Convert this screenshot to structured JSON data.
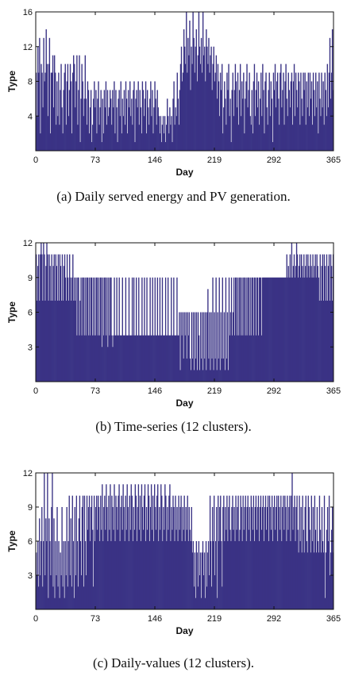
{
  "chart_data": [
    {
      "type": "bar",
      "caption": "(a) Daily served energy and PV generation.",
      "xlabel": "Day",
      "ylabel": "Type",
      "xlim": [
        0,
        365
      ],
      "ylim": [
        0,
        16
      ],
      "xticks": [
        0,
        73,
        146,
        219,
        292,
        365
      ],
      "yticks": [
        4,
        8,
        12,
        16
      ],
      "grid": false,
      "color": "#3a3385",
      "x": "days 1-365",
      "series": [
        {
          "values": [
            9,
            4,
            12,
            9,
            13,
            2,
            10,
            9,
            5,
            13,
            8,
            9,
            14,
            10,
            4,
            10,
            13,
            2,
            9,
            9,
            11,
            5,
            11,
            9,
            3,
            8,
            4,
            9,
            3,
            7,
            10,
            5,
            2,
            7,
            9,
            10,
            3,
            8,
            10,
            4,
            7,
            10,
            8,
            2,
            9,
            11,
            10,
            5,
            8,
            11,
            3,
            7,
            11,
            1,
            6,
            10,
            8,
            4,
            6,
            11,
            6,
            3,
            8,
            7,
            2,
            5,
            7,
            1,
            3,
            6,
            8,
            5,
            7,
            2,
            6,
            8,
            3,
            5,
            7,
            1,
            6,
            2,
            7,
            5,
            8,
            3,
            7,
            4,
            5,
            7,
            6,
            3,
            7,
            5,
            8,
            2,
            7,
            5,
            1,
            6,
            7,
            4,
            8,
            2,
            6,
            4,
            7,
            3,
            8,
            6,
            2,
            7,
            5,
            8,
            4,
            6,
            3,
            7,
            8,
            1,
            6,
            7,
            5,
            8,
            3,
            7,
            5,
            2,
            8,
            7,
            4,
            6,
            8,
            2,
            7,
            5,
            3,
            6,
            8,
            4,
            7,
            2,
            5,
            8,
            6,
            3,
            7,
            5,
            4,
            2,
            4,
            1,
            3,
            4,
            2,
            4,
            1,
            3,
            6,
            4,
            2,
            5,
            3,
            4,
            1,
            6,
            8,
            3,
            5,
            4,
            9,
            6,
            3,
            7,
            10,
            12,
            8,
            9,
            14,
            12,
            10,
            16,
            9,
            13,
            11,
            15,
            7,
            12,
            10,
            16,
            13,
            9,
            12,
            14,
            8,
            11,
            16,
            12,
            10,
            13,
            9,
            16,
            11,
            12,
            8,
            14,
            12,
            10,
            13,
            9,
            11,
            12,
            7,
            10,
            12,
            8,
            9,
            11,
            6,
            10,
            8,
            4,
            9,
            7,
            10,
            2,
            5,
            8,
            6,
            3,
            9,
            7,
            10,
            4,
            6,
            1,
            7,
            9,
            4,
            7,
            10,
            8,
            5,
            9,
            3,
            7,
            10,
            4,
            8,
            6,
            9,
            2,
            6,
            8,
            10,
            5,
            7,
            9,
            4,
            3,
            7,
            2,
            8,
            10,
            4,
            7,
            9,
            5,
            8,
            3,
            6,
            9,
            4,
            10,
            7,
            2,
            8,
            9,
            5,
            3,
            7,
            9,
            4,
            8,
            6,
            1,
            9,
            7,
            10,
            5,
            8,
            9,
            6,
            3,
            9,
            10,
            5,
            7,
            9,
            3,
            8,
            10,
            6,
            4,
            9,
            7,
            5,
            8,
            9,
            3,
            8,
            10,
            4,
            9,
            7,
            5,
            9,
            8,
            3,
            9,
            6,
            4,
            9,
            7,
            9,
            3,
            8,
            5,
            9,
            4,
            9,
            6,
            8,
            3,
            9,
            7,
            4,
            9,
            5,
            8,
            2,
            9,
            6,
            4,
            9,
            5,
            8,
            3,
            9,
            7,
            4,
            10,
            5,
            9,
            13,
            6,
            9,
            14,
            7
          ]
        }
      ]
    },
    {
      "type": "bar",
      "caption": "(b) Time-series (12 clusters).",
      "xlabel": "Day",
      "ylabel": "Type",
      "xlim": [
        0,
        365
      ],
      "ylim": [
        0,
        12
      ],
      "xticks": [
        0,
        73,
        146,
        219,
        292,
        365
      ],
      "yticks": [
        3,
        6,
        9,
        12
      ],
      "grid": false,
      "color": "#3a3385",
      "x": "days 1-365",
      "series": [
        {
          "values": [
            11,
            7,
            10,
            11,
            7,
            11,
            12,
            11,
            7,
            12,
            11,
            7,
            10,
            12,
            11,
            7,
            11,
            10,
            7,
            11,
            7,
            10,
            11,
            7,
            11,
            10,
            7,
            11,
            7,
            11,
            10,
            7,
            11,
            7,
            10,
            11,
            9,
            7,
            11,
            9,
            7,
            11,
            9,
            7,
            9,
            11,
            7,
            9,
            7,
            9,
            4,
            9,
            9,
            4,
            7,
            9,
            4,
            9,
            9,
            4,
            9,
            4,
            9,
            9,
            4,
            9,
            4,
            9,
            9,
            4,
            9,
            4,
            9,
            4,
            9,
            9,
            4,
            9,
            4,
            9,
            9,
            3,
            9,
            4,
            9,
            9,
            4,
            9,
            3,
            9,
            4,
            9,
            9,
            4,
            3,
            4,
            9,
            4,
            4,
            9,
            4,
            4,
            9,
            4,
            4,
            4,
            9,
            4,
            4,
            4,
            9,
            4,
            4,
            4,
            9,
            4,
            4,
            4,
            9,
            4,
            9,
            4,
            4,
            9,
            4,
            4,
            9,
            4,
            4,
            4,
            9,
            4,
            4,
            9,
            4,
            4,
            9,
            4,
            4,
            4,
            9,
            4,
            4,
            9,
            4,
            4,
            9,
            4,
            4,
            9,
            4,
            4,
            9,
            4,
            4,
            9,
            4,
            4,
            4,
            9,
            4,
            4,
            9,
            4,
            4,
            4,
            9,
            4,
            4,
            9,
            4,
            4,
            4,
            9,
            4,
            4,
            6,
            1,
            6,
            4,
            6,
            2,
            6,
            4,
            6,
            2,
            6,
            4,
            6,
            2,
            1,
            6,
            2,
            6,
            1,
            6,
            2,
            6,
            1,
            6,
            4,
            1,
            6,
            2,
            6,
            1,
            6,
            2,
            6,
            1,
            6,
            8,
            2,
            6,
            1,
            6,
            2,
            9,
            1,
            6,
            2,
            9,
            1,
            6,
            2,
            9,
            1,
            6,
            2,
            9,
            2,
            6,
            1,
            9,
            2,
            6,
            1,
            9,
            4,
            6,
            9,
            4,
            6,
            9,
            4,
            9,
            9,
            4,
            9,
            4,
            9,
            9,
            4,
            9,
            4,
            9,
            9,
            4,
            9,
            4,
            9,
            9,
            4,
            9,
            4,
            9,
            9,
            4,
            9,
            9,
            4,
            9,
            9,
            4,
            9,
            9,
            9,
            4,
            9,
            9,
            9,
            9,
            9,
            9,
            9,
            9,
            9,
            9,
            9,
            9,
            9,
            9,
            9,
            9,
            9,
            9,
            9,
            9,
            9,
            9,
            9,
            9,
            9,
            9,
            9,
            9,
            9,
            9,
            11,
            9,
            10,
            9,
            11,
            9,
            12,
            9,
            10,
            11,
            9,
            10,
            12,
            11,
            9,
            10,
            11,
            9,
            11,
            10,
            9,
            11,
            9,
            10,
            11,
            9,
            11,
            10,
            9,
            11,
            10,
            9,
            11,
            9,
            10,
            11,
            9,
            11,
            10,
            9,
            7,
            11,
            7,
            10,
            11,
            7,
            11,
            10,
            7,
            11,
            7,
            10,
            11,
            7,
            11,
            10,
            7,
            11
          ]
        }
      ]
    },
    {
      "type": "bar",
      "caption": "(c) Daily-values (12 clusters).",
      "xlabel": "Day",
      "ylabel": "Type",
      "xlim": [
        0,
        365
      ],
      "ylim": [
        0,
        12
      ],
      "xticks": [
        0,
        73,
        146,
        219,
        292,
        365
      ],
      "yticks": [
        3,
        6,
        9,
        12
      ],
      "grid": false,
      "color": "#3a3385",
      "x": "days 1-365",
      "series": [
        {
          "values": [
            5,
            3,
            6,
            2,
            8,
            3,
            6,
            9,
            2,
            6,
            12,
            3,
            8,
            6,
            12,
            1,
            8,
            6,
            3,
            9,
            12,
            2,
            8,
            1,
            6,
            3,
            9,
            2,
            6,
            1,
            5,
            3,
            9,
            2,
            6,
            1,
            6,
            3,
            9,
            2,
            6,
            10,
            3,
            8,
            2,
            10,
            6,
            1,
            9,
            3,
            10,
            6,
            2,
            8,
            10,
            6,
            3,
            9,
            10,
            2,
            10,
            6,
            3,
            10,
            7,
            9,
            10,
            6,
            9,
            10,
            7,
            2,
            10,
            6,
            9,
            10,
            7,
            10,
            9,
            6,
            10,
            7,
            11,
            6,
            9,
            10,
            7,
            11,
            9,
            6,
            10,
            7,
            11,
            6,
            10,
            9,
            7,
            11,
            6,
            10,
            9,
            7,
            10,
            11,
            6,
            9,
            10,
            7,
            11,
            9,
            6,
            10,
            7,
            11,
            9,
            6,
            10,
            7,
            11,
            10,
            6,
            9,
            7,
            11,
            10,
            6,
            9,
            11,
            7,
            10,
            6,
            11,
            9,
            7,
            10,
            11,
            6,
            9,
            7,
            11,
            10,
            6,
            9,
            11,
            7,
            10,
            6,
            11,
            9,
            7,
            10,
            11,
            6,
            9,
            7,
            11,
            10,
            6,
            9,
            7,
            11,
            10,
            6,
            9,
            7,
            10,
            11,
            6,
            9,
            7,
            10,
            9,
            6,
            10,
            7,
            9,
            6,
            10,
            7,
            9,
            10,
            6,
            9,
            7,
            10,
            6,
            9,
            7,
            10,
            6,
            9,
            7,
            6,
            9,
            5,
            6,
            2,
            5,
            1,
            6,
            5,
            2,
            6,
            3,
            5,
            1,
            5,
            6,
            3,
            5,
            1,
            6,
            2,
            5,
            6,
            3,
            10,
            6,
            2,
            9,
            6,
            10,
            3,
            6,
            9,
            1,
            10,
            6,
            9,
            10,
            6,
            2,
            9,
            10,
            6,
            9,
            7,
            10,
            6,
            9,
            10,
            7,
            6,
            9,
            10,
            7,
            9,
            6,
            10,
            7,
            9,
            10,
            6,
            7,
            10,
            9,
            6,
            10,
            7,
            9,
            10,
            6,
            9,
            10,
            7,
            9,
            6,
            10,
            9,
            7,
            10,
            6,
            9,
            10,
            7,
            9,
            10,
            6,
            9,
            10,
            7,
            9,
            10,
            6,
            9,
            10,
            7,
            9,
            10,
            6,
            10,
            9,
            7,
            10,
            6,
            9,
            10,
            7,
            9,
            10,
            6,
            10,
            9,
            7,
            10,
            6,
            9,
            10,
            7,
            10,
            9,
            6,
            10,
            7,
            9,
            10,
            6,
            10,
            12,
            7,
            9,
            10,
            6,
            9,
            10,
            7,
            5,
            10,
            6,
            9,
            5,
            10,
            7,
            5,
            9,
            10,
            6,
            5,
            10,
            9,
            7,
            5,
            10,
            6,
            9,
            5,
            10,
            7,
            5,
            9,
            6,
            5,
            10,
            7,
            5,
            9,
            6,
            5,
            10,
            1,
            5,
            7,
            9,
            6,
            10,
            3,
            5,
            7,
            9,
            5
          ]
        }
      ]
    }
  ]
}
